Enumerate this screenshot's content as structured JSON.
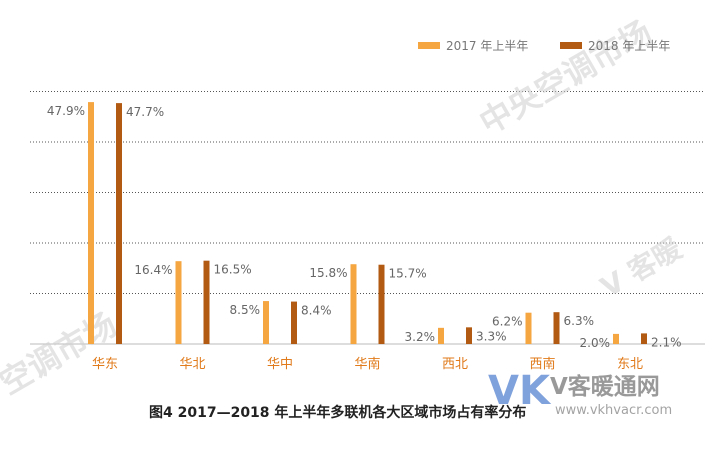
{
  "chart_data": {
    "type": "bar",
    "title": "图4 2017—2018 年上半年多联机各大区域市场占有率分布",
    "categories": [
      "华东",
      "华北",
      "华中",
      "华南",
      "西北",
      "西南",
      "东北"
    ],
    "series": [
      {
        "name": "2017 年上半年",
        "values": [
          47.9,
          16.4,
          8.5,
          15.8,
          3.2,
          6.2,
          2.0
        ],
        "labels": [
          "47.9%",
          "16.4%",
          "8.5%",
          "15.8%",
          "3.2%",
          "6.2%",
          "2.0%"
        ]
      },
      {
        "name": "2018 年上半年",
        "values": [
          47.7,
          16.5,
          8.4,
          15.7,
          3.3,
          6.3,
          2.1
        ],
        "labels": [
          "47.7%",
          "16.5%",
          "8.4%",
          "15.7%",
          "3.3%",
          "6.3%",
          "2.1%"
        ]
      }
    ],
    "ylim": [
      0,
      50
    ],
    "grid": true,
    "legend_position": "top-right",
    "colors": [
      "#f5a641",
      "#b25a12"
    ]
  },
  "watermark": {
    "diagonal_left": "空调市场",
    "diagonal_right": "中央空调市场",
    "side": "V 客暖",
    "brand_logo": "VK",
    "brand_name": "V客暖通网",
    "brand_url": "www.vkhvacr.com"
  }
}
